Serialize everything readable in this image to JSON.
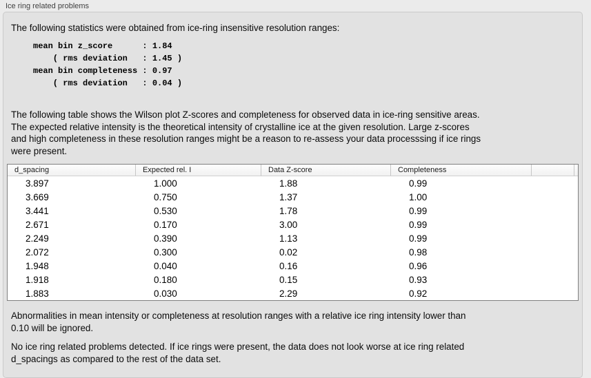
{
  "panel": {
    "title": "Ice ring related problems"
  },
  "intro_text": "The following statistics were obtained from ice-ring insensitive resolution ranges:",
  "stats_block": {
    "lines": [
      "mean bin z_score      : 1.84",
      "    ( rms deviation   : 1.45 )",
      "mean bin completeness : 0.97",
      "    ( rms deviation   : 0.04 )"
    ]
  },
  "table_description": {
    "lines": [
      "The following table shows the Wilson plot Z-scores and completeness for observed data in ice-ring sensitive areas.",
      "The expected relative intensity is the theoretical intensity of crystalline ice at the given resolution. Large z-scores",
      "and high completeness in these resolution ranges might be a reason to re-assess your data processsing if ice rings",
      "were present."
    ]
  },
  "table": {
    "columns": [
      "d_spacing",
      "Expected rel. I",
      "Data Z-score",
      "Completeness"
    ],
    "rows": [
      [
        "3.897",
        "1.000",
        "1.88",
        "0.99"
      ],
      [
        "3.669",
        "0.750",
        "1.37",
        "1.00"
      ],
      [
        "3.441",
        "0.530",
        "1.78",
        "0.99"
      ],
      [
        "2.671",
        "0.170",
        "3.00",
        "0.99"
      ],
      [
        "2.249",
        "0.390",
        "1.13",
        "0.99"
      ],
      [
        "2.072",
        "0.300",
        "0.02",
        "0.98"
      ],
      [
        "1.948",
        "0.040",
        "0.16",
        "0.96"
      ],
      [
        "1.918",
        "0.180",
        "0.15",
        "0.93"
      ],
      [
        "1.883",
        "0.030",
        "2.29",
        "0.92"
      ]
    ]
  },
  "note_ignore": {
    "lines": [
      "Abnormalities in mean intensity or completeness at resolution ranges with a relative ice ring intensity lower than",
      "0.10 will be ignored."
    ]
  },
  "conclusion": {
    "lines": [
      "No ice ring related problems detected. If ice rings were present, the data does not look worse at ice ring related",
      "d_spacings as compared to the rest of the data set."
    ]
  },
  "colors": {
    "page_bg": "#ebebeb",
    "panel_bg": "#e2e2e2",
    "panel_border": "#c9c9c9",
    "table_border": "#7f7f7f",
    "table_bg": "#ffffff",
    "text": "#0a0a0a"
  }
}
